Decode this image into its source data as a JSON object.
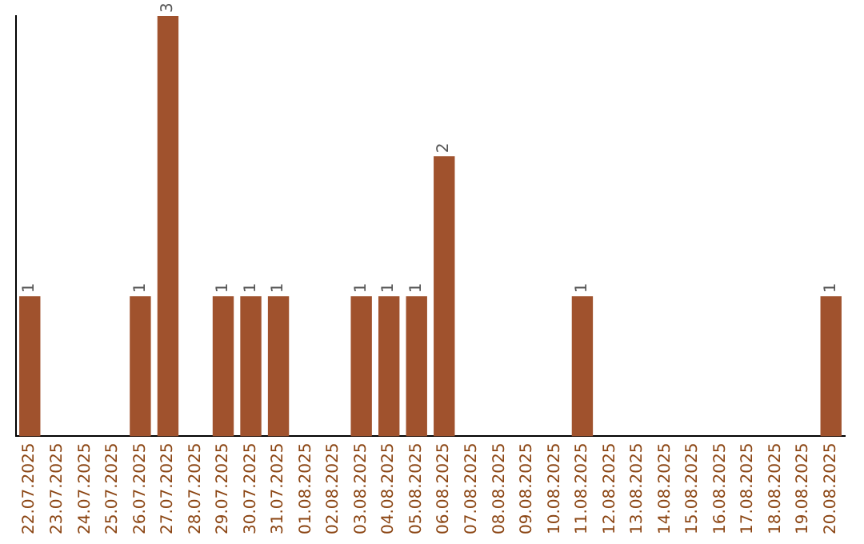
{
  "chart_data": {
    "type": "bar",
    "categories": [
      "22.07.2025",
      "23.07.2025",
      "24.07.2025",
      "25.07.2025",
      "26.07.2025",
      "27.07.2025",
      "28.07.2025",
      "29.07.2025",
      "30.07.2025",
      "31.07.2025",
      "01.08.2025",
      "02.08.2025",
      "03.08.2025",
      "04.08.2025",
      "05.08.2025",
      "06.08.2025",
      "07.08.2025",
      "08.08.2025",
      "09.08.2025",
      "10.08.2025",
      "11.08.2025",
      "12.08.2025",
      "13.08.2025",
      "14.08.2025",
      "15.08.2025",
      "16.08.2025",
      "17.08.2025",
      "18.08.2025",
      "19.08.2025",
      "20.08.2025"
    ],
    "values": [
      1,
      0,
      0,
      0,
      1,
      3,
      0,
      1,
      1,
      1,
      0,
      0,
      1,
      1,
      1,
      2,
      0,
      0,
      0,
      0,
      1,
      0,
      0,
      0,
      0,
      0,
      0,
      0,
      0,
      1
    ],
    "value_labels": [
      "1",
      null,
      null,
      null,
      "1",
      "3",
      null,
      "1",
      "1",
      "1",
      null,
      null,
      "1",
      "1",
      "1",
      "2",
      null,
      null,
      null,
      null,
      "1",
      null,
      null,
      null,
      null,
      null,
      null,
      null,
      null,
      "1"
    ],
    "color": "#a0522d",
    "grid": false,
    "legend": false,
    "tick_labels": "x"
  }
}
